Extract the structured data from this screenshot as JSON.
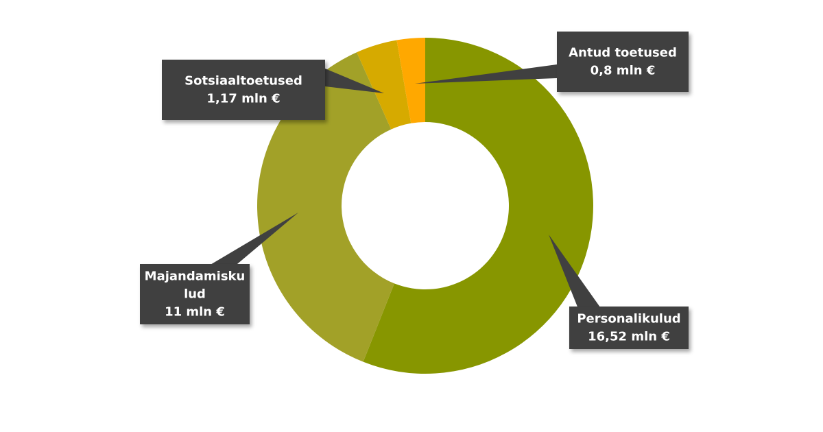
{
  "chart_data": {
    "type": "pie",
    "variant": "donut",
    "legend": "none",
    "slices": [
      {
        "label_lines": [
          "Personalikulud",
          "16,52 mln €"
        ],
        "value": 16.52,
        "color": "#879600"
      },
      {
        "label_lines": [
          "Majandamisku",
          "lud",
          "11 mln €"
        ],
        "value": 11,
        "color": "#a2a128"
      },
      {
        "label_lines": [
          "Sotsiaaltoetused",
          "1,17 mln €"
        ],
        "value": 1.17,
        "color": "#d6aa00"
      },
      {
        "label_lines": [
          "Antud toetused",
          "0,8 mln €"
        ],
        "value": 0.8,
        "color": "#ffa800"
      }
    ]
  }
}
